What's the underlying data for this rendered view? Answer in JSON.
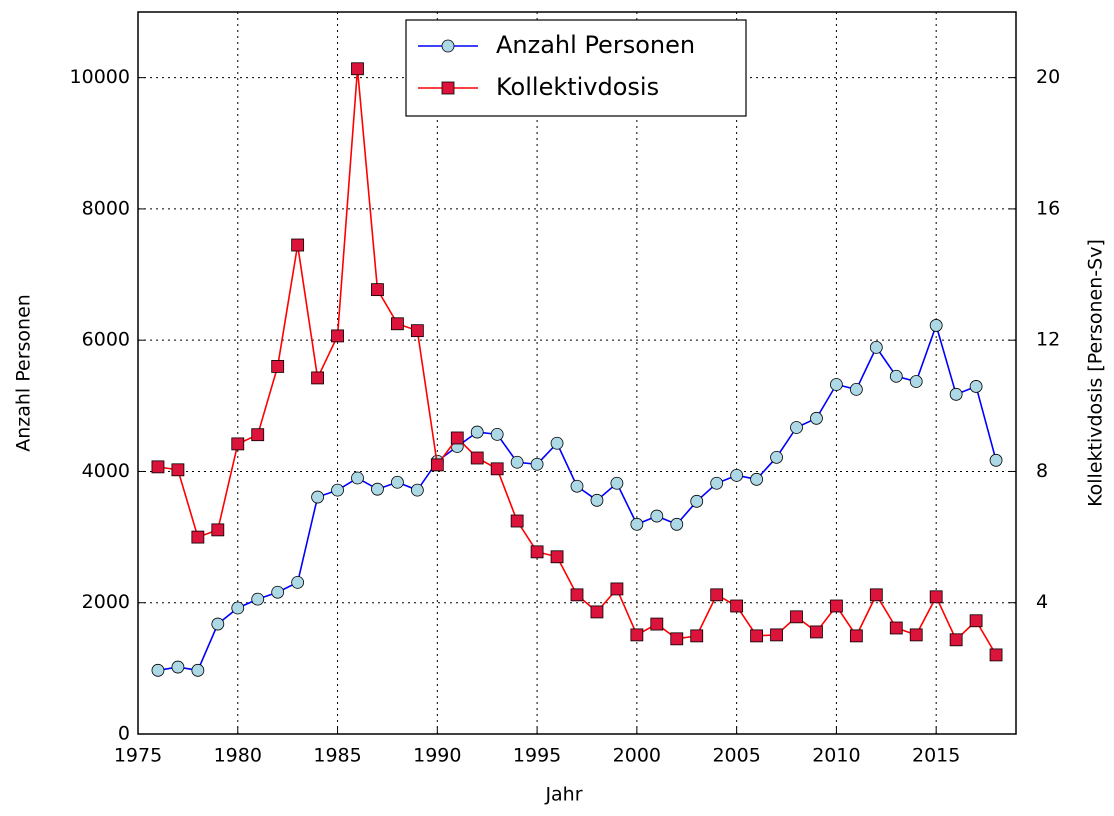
{
  "chart_data": {
    "type": "line",
    "x_label": "Jahr",
    "y_label": "Anzahl Personen",
    "y2_label": "Kollektivdosis [Personen-Sv]",
    "x": [
      1976,
      1977,
      1978,
      1979,
      1980,
      1981,
      1982,
      1983,
      1984,
      1985,
      1986,
      1987,
      1988,
      1989,
      1990,
      1991,
      1992,
      1993,
      1994,
      1995,
      1996,
      1997,
      1998,
      1999,
      2000,
      2001,
      2002,
      2003,
      2004,
      2005,
      2006,
      2007,
      2008,
      2009,
      2010,
      2011,
      2012,
      2013,
      2014,
      2015,
      2016,
      2017,
      2018
    ],
    "series": [
      {
        "name": "Anzahl Personen",
        "color": "#0000ff",
        "marker": "circle",
        "marker_color": "#add8e6",
        "values": [
          970,
          1020,
          970,
          1675,
          1920,
          2055,
          2160,
          2310,
          3610,
          3715,
          3900,
          3730,
          3835,
          3715,
          4155,
          4380,
          4600,
          4565,
          4140,
          4110,
          4430,
          3775,
          3560,
          3820,
          3195,
          3320,
          3195,
          3545,
          3820,
          3940,
          3880,
          4215,
          4670,
          4810,
          5325,
          5250,
          5890,
          5450,
          5370,
          6225,
          5175,
          5295,
          4170
        ]
      },
      {
        "name": "Kollektivdosis",
        "color": "#ff0000",
        "marker": "square",
        "marker_color": "#dc143c",
        "axis": "y2",
        "values": [
          8.14,
          8.05,
          6.0,
          6.22,
          8.84,
          9.12,
          11.2,
          14.9,
          10.85,
          12.13,
          20.27,
          13.54,
          12.5,
          12.29,
          8.2,
          9.02,
          8.41,
          8.08,
          6.49,
          5.55,
          5.4,
          4.24,
          3.72,
          4.42,
          3.02,
          3.35,
          2.9,
          2.99,
          4.24,
          3.9,
          2.99,
          3.02,
          3.57,
          3.11,
          3.9,
          2.99,
          4.24,
          3.23,
          3.02,
          4.18,
          2.87,
          3.45,
          2.41
        ]
      }
    ],
    "xlim": [
      1975,
      2019
    ],
    "xticks": [
      1975,
      1980,
      1985,
      1990,
      1995,
      2000,
      2005,
      2010,
      2015
    ],
    "ylim": [
      0,
      11000
    ],
    "yticks": [
      0,
      2000,
      4000,
      6000,
      8000,
      10000
    ],
    "y2lim": [
      0,
      22
    ],
    "y2ticks": [
      4,
      8,
      12,
      16,
      20
    ],
    "grid": true,
    "legend": "upper center"
  }
}
